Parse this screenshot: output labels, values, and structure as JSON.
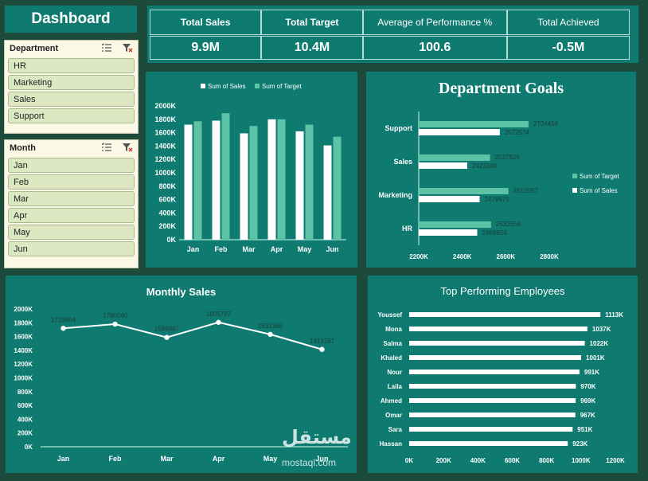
{
  "dashboard": {
    "title": "Dashboard"
  },
  "kpis": [
    {
      "label": "Total Sales",
      "value": "9.9M"
    },
    {
      "label": "Total Target",
      "value": "10.4M"
    },
    {
      "label": "Average of Performance %",
      "value": "100.6"
    },
    {
      "label": "Total Achieved",
      "value": "-0.5M"
    }
  ],
  "slicers": {
    "department": {
      "title": "Department",
      "items": [
        "HR",
        "Marketing",
        "Sales",
        "Support"
      ]
    },
    "month": {
      "title": "Month",
      "items": [
        "Jan",
        "Feb",
        "Mar",
        "Apr",
        "May",
        "Jun"
      ]
    }
  },
  "colors": {
    "background": "#1c4b3c",
    "panel": "#0e7a70",
    "sales": "#ffffff",
    "target": "#5cc3a6"
  },
  "watermark": {
    "text": "مستقل",
    "sub": "mostaql.com"
  },
  "chart_data": [
    {
      "type": "bar",
      "legend": [
        "Sum of Sales",
        "Sum of Target"
      ],
      "categories": [
        "Jan",
        "Feb",
        "Mar",
        "Apr",
        "May",
        "Jun"
      ],
      "series": [
        {
          "name": "Sum of Sales",
          "values": [
            1720000,
            1780000,
            1590000,
            1800000,
            1620000,
            1410000
          ]
        },
        {
          "name": "Sum of Target",
          "values": [
            1770000,
            1890000,
            1700000,
            1800000,
            1720000,
            1540000
          ]
        }
      ],
      "ylim": [
        0,
        2000000
      ],
      "yticks": [
        "0K",
        "200K",
        "400K",
        "600K",
        "800K",
        "1000K",
        "1200K",
        "1400K",
        "1600K",
        "1800K",
        "2000K"
      ],
      "legend_position": "top"
    },
    {
      "type": "bar",
      "orientation": "horizontal",
      "title": "Department Goals",
      "categories": [
        "Support",
        "Sales",
        "Marketing",
        "HR"
      ],
      "series": [
        {
          "name": "Sum of Target",
          "values": [
            2704458,
            2527829,
            2612057,
            2532556
          ]
        },
        {
          "name": "Sum of Sales",
          "values": [
            2572574,
            2423104,
            2479675,
            2468854
          ]
        }
      ],
      "data_labels": {
        "target": [
          "2704458",
          "2527829",
          "2612057",
          "2532556"
        ],
        "sales": [
          "2572574",
          "2423104",
          "2479675",
          "2468854"
        ]
      },
      "xlim": [
        2200000,
        2800000
      ],
      "xticks": [
        "2200K",
        "2400K",
        "2600K",
        "2800K"
      ],
      "legend": [
        "Sum of Target",
        "Sum of Sales"
      ],
      "legend_position": "right"
    },
    {
      "type": "line",
      "title": "Monthly Sales",
      "categories": [
        "Jan",
        "Feb",
        "Mar",
        "Apr",
        "May",
        "Jun"
      ],
      "values": [
        1719604,
        1780040,
        1586887,
        1805797,
        1631365,
        1413197
      ],
      "data_labels": [
        "1719604",
        "1780040",
        "1586887",
        "1805797",
        "1631365",
        "1413197"
      ],
      "ylim": [
        0,
        2000000
      ],
      "yticks": [
        "0K",
        "200K",
        "400K",
        "600K",
        "800K",
        "1000K",
        "1200K",
        "1400K",
        "1600K",
        "1800K",
        "2000K"
      ]
    },
    {
      "type": "bar",
      "orientation": "horizontal",
      "title": "Top Performing Employees",
      "categories": [
        "Youssef",
        "Mona",
        "Salma",
        "Khaled",
        "Nour",
        "Laila",
        "Ahmed",
        "Omar",
        "Sara",
        "Hassan"
      ],
      "values": [
        1113,
        1037,
        1022,
        1001,
        991,
        970,
        969,
        967,
        951,
        923
      ],
      "data_labels": [
        "1113K",
        "1037K",
        "1022K",
        "1001K",
        "991K",
        "970K",
        "969K",
        "967K",
        "951K",
        "923K"
      ],
      "xlim": [
        0,
        1200
      ],
      "xticks": [
        "0K",
        "200K",
        "400K",
        "600K",
        "800K",
        "1000K",
        "1200K"
      ]
    }
  ]
}
